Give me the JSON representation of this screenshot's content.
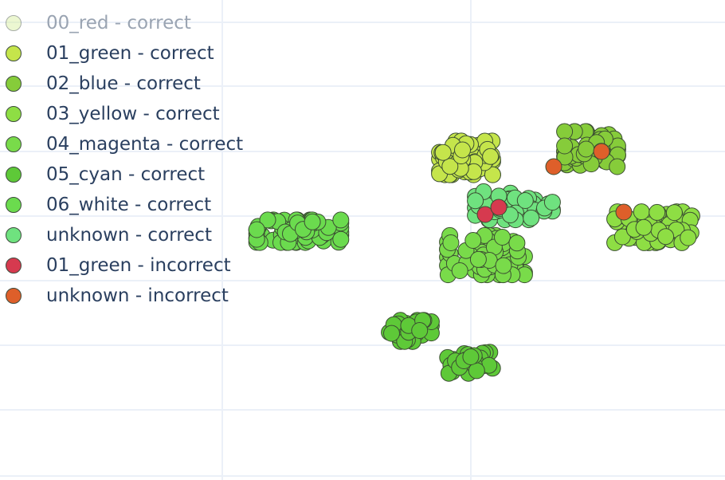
{
  "chart_data": {
    "type": "scatter",
    "legend_position": "top-left",
    "grid": true,
    "series": [
      {
        "name": "00_red - correct",
        "color": "#d7ef9a",
        "visible": false,
        "clusters": []
      },
      {
        "name": "01_green - correct",
        "color": "#c5e54b",
        "visible": true,
        "clusters": [
          {
            "cx": 585,
            "cy": 198,
            "rx": 38,
            "ry": 24,
            "n": 70
          }
        ]
      },
      {
        "name": "02_blue - correct",
        "color": "#86cc3a",
        "visible": true,
        "clusters": [
          {
            "cx": 742,
            "cy": 187,
            "rx": 38,
            "ry": 25,
            "n": 60
          }
        ]
      },
      {
        "name": "03_yellow - correct",
        "color": "#8ede44",
        "visible": true,
        "clusters": [
          {
            "cx": 820,
            "cy": 285,
            "rx": 55,
            "ry": 22,
            "n": 75
          }
        ]
      },
      {
        "name": "04_magenta - correct",
        "color": "#79db4a",
        "visible": true,
        "clusters": [
          {
            "cx": 610,
            "cy": 320,
            "rx": 55,
            "ry": 28,
            "n": 80
          }
        ]
      },
      {
        "name": "05_cyan - correct",
        "color": "#5ec938",
        "visible": true,
        "clusters": [
          {
            "cx": 515,
            "cy": 415,
            "rx": 30,
            "ry": 15,
            "n": 35
          },
          {
            "cx": 590,
            "cy": 455,
            "rx": 32,
            "ry": 15,
            "n": 35
          }
        ]
      },
      {
        "name": "06_white - correct",
        "color": "#6bdb4e",
        "visible": true,
        "clusters": [
          {
            "cx": 375,
            "cy": 290,
            "rx": 60,
            "ry": 16,
            "n": 80
          }
        ]
      },
      {
        "name": "unknown - correct",
        "color": "#6fe27f",
        "visible": true,
        "clusters": [
          {
            "cx": 645,
            "cy": 258,
            "rx": 55,
            "ry": 20,
            "n": 50
          }
        ]
      },
      {
        "name": "01_green - incorrect",
        "color": "#d63a4f",
        "visible": true,
        "points": [
          [
            609,
            269
          ],
          [
            626,
            260
          ]
        ]
      },
      {
        "name": "unknown - incorrect",
        "color": "#de5f2a",
        "visible": true,
        "points": [
          [
            695,
            209
          ],
          [
            755,
            190
          ],
          [
            783,
            266
          ]
        ]
      }
    ]
  }
}
